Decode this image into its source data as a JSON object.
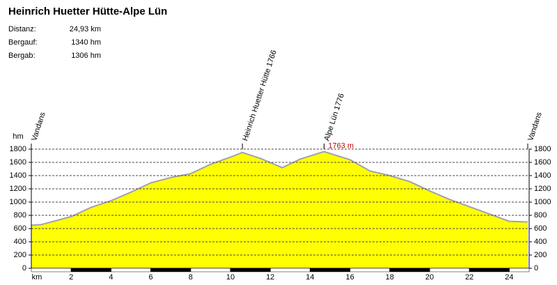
{
  "chart_data": {
    "type": "area",
    "title": "Heinrich Huetter Hütte-Alpe Lün",
    "stats": [
      {
        "label": "Distanz:",
        "value": "24,93 km"
      },
      {
        "label": "Bergauf:",
        "value": "1340 hm"
      },
      {
        "label": "Bergab:",
        "value": "1306 hm"
      }
    ],
    "y_label": "hm",
    "x_label": "km",
    "x": [
      0,
      0.5,
      2,
      3,
      4,
      5,
      6,
      7,
      8,
      9,
      10,
      10.6,
      11.5,
      12.6,
      13.5,
      14.7,
      16,
      17,
      18,
      19,
      20,
      21,
      22,
      23,
      24,
      24.93
    ],
    "values": [
      650,
      660,
      780,
      920,
      1020,
      1150,
      1290,
      1370,
      1430,
      1570,
      1680,
      1750,
      1660,
      1520,
      1650,
      1763,
      1640,
      1470,
      1400,
      1310,
      1170,
      1040,
      930,
      820,
      710,
      700
    ],
    "color": "#ffff00",
    "line_color": "#a0a0b0",
    "xlim": [
      0,
      25
    ],
    "xticks": [
      2,
      4,
      6,
      8,
      10,
      12,
      14,
      16,
      18,
      20,
      22,
      24
    ],
    "ylim": [
      0,
      1800
    ],
    "yticks": [
      0,
      200,
      400,
      600,
      800,
      1000,
      1200,
      1400,
      1600,
      1800
    ],
    "grid": true,
    "waypoints": [
      {
        "label": "Vandans",
        "x": 0
      },
      {
        "label": "Heinrich Huetter Hütte 1766",
        "x": 10.6
      },
      {
        "label": "Alpe Lün 1776",
        "x": 14.7
      },
      {
        "label": "Vandans",
        "x": 24.93
      }
    ],
    "peak_annotation": {
      "label": "1763 m",
      "x": 14.7,
      "y": 1763,
      "color": "#c00000"
    }
  }
}
